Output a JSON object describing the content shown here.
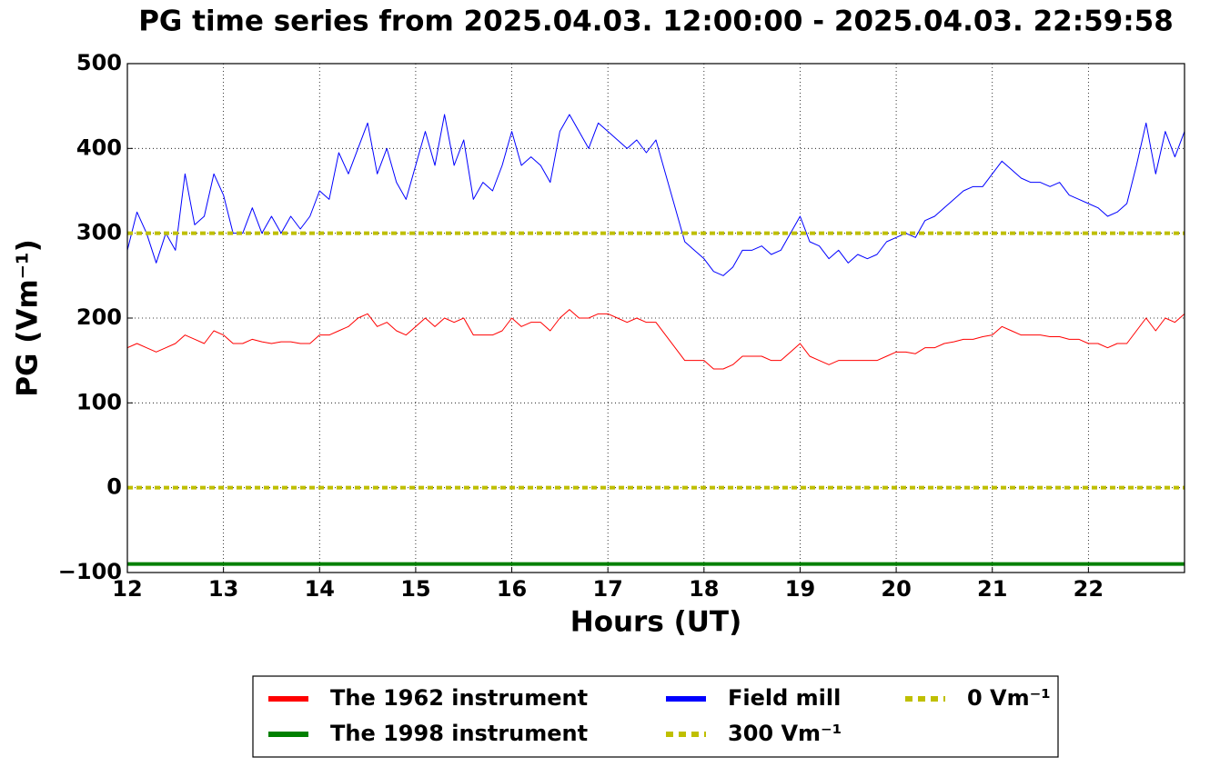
{
  "chart_data": {
    "type": "line",
    "title": "PG time series from 2025.04.03. 12:00:00 - 2025.04.03. 22:59:58",
    "xlabel": "Hours (UT)",
    "ylabel": "PG (Vm⁻¹)",
    "x": [
      12,
      12.1,
      12.2,
      12.3,
      12.4,
      12.5,
      12.6,
      12.7,
      12.8,
      12.9,
      13,
      13.1,
      13.2,
      13.3,
      13.4,
      13.5,
      13.6,
      13.7,
      13.8,
      13.9,
      14,
      14.1,
      14.2,
      14.3,
      14.4,
      14.5,
      14.6,
      14.7,
      14.8,
      14.9,
      15,
      15.1,
      15.2,
      15.3,
      15.4,
      15.5,
      15.6,
      15.7,
      15.8,
      15.9,
      16,
      16.1,
      16.2,
      16.3,
      16.4,
      16.5,
      16.6,
      16.7,
      16.8,
      16.9,
      17,
      17.1,
      17.2,
      17.3,
      17.4,
      17.5,
      17.6,
      17.7,
      17.8,
      17.9,
      18,
      18.1,
      18.2,
      18.3,
      18.4,
      18.5,
      18.6,
      18.7,
      18.8,
      18.9,
      19,
      19.1,
      19.2,
      19.3,
      19.4,
      19.5,
      19.6,
      19.7,
      19.8,
      19.9,
      20,
      20.1,
      20.2,
      20.3,
      20.4,
      20.5,
      20.6,
      20.7,
      20.8,
      20.9,
      21,
      21.1,
      21.2,
      21.3,
      21.4,
      21.5,
      21.6,
      21.7,
      21.8,
      21.9,
      22,
      22.1,
      22.2,
      22.3,
      22.4,
      22.5,
      22.6,
      22.7,
      22.8,
      22.9,
      23
    ],
    "series": [
      {
        "name": "The 1962 instrument",
        "color": "#ff0000",
        "width": 1,
        "values": [
          165,
          170,
          165,
          160,
          165,
          170,
          180,
          175,
          170,
          185,
          180,
          170,
          170,
          175,
          172,
          170,
          172,
          172,
          170,
          170,
          180,
          180,
          185,
          190,
          200,
          205,
          190,
          195,
          185,
          180,
          190,
          200,
          190,
          200,
          195,
          200,
          180,
          180,
          180,
          185,
          200,
          190,
          195,
          195,
          185,
          200,
          210,
          200,
          200,
          205,
          205,
          200,
          195,
          200,
          195,
          195,
          180,
          165,
          150,
          150,
          150,
          140,
          140,
          145,
          155,
          155,
          155,
          150,
          150,
          160,
          170,
          155,
          150,
          145,
          150,
          150,
          150,
          150,
          150,
          155,
          160,
          160,
          158,
          165,
          165,
          170,
          172,
          175,
          175,
          178,
          180,
          190,
          185,
          180,
          180,
          180,
          178,
          178,
          175,
          175,
          170,
          170,
          165,
          170,
          170,
          185,
          200,
          185,
          200,
          195,
          205
        ]
      },
      {
        "name": "The 1998 instrument",
        "color": "#008000",
        "width": 4,
        "x": [
          12,
          23
        ],
        "values": [
          -90,
          -90
        ]
      },
      {
        "name": "Field mill",
        "color": "#0000ff",
        "width": 1,
        "values": [
          280,
          325,
          300,
          265,
          300,
          280,
          370,
          310,
          320,
          370,
          345,
          300,
          300,
          330,
          300,
          320,
          300,
          320,
          305,
          320,
          350,
          340,
          395,
          370,
          400,
          430,
          370,
          400,
          360,
          340,
          380,
          420,
          380,
          440,
          380,
          410,
          340,
          360,
          350,
          380,
          420,
          380,
          390,
          380,
          360,
          420,
          440,
          420,
          400,
          430,
          420,
          410,
          400,
          410,
          395,
          410,
          370,
          330,
          290,
          280,
          270,
          255,
          250,
          260,
          280,
          280,
          285,
          275,
          280,
          300,
          320,
          290,
          285,
          270,
          280,
          265,
          275,
          270,
          275,
          290,
          295,
          300,
          295,
          315,
          320,
          330,
          340,
          350,
          355,
          355,
          370,
          385,
          375,
          365,
          360,
          360,
          355,
          360,
          345,
          340,
          335,
          330,
          320,
          325,
          335,
          380,
          430,
          370,
          420,
          390,
          420
        ]
      }
    ],
    "hlines": [
      {
        "name": "300 Vm⁻¹",
        "value": 300,
        "color": "#bfbf00"
      },
      {
        "name": "0 Vm⁻¹",
        "value": 0,
        "color": "#bfbf00"
      }
    ],
    "xlim": [
      12,
      23
    ],
    "xticks": [
      12,
      13,
      14,
      15,
      16,
      17,
      18,
      19,
      20,
      21,
      22
    ],
    "ylim": [
      -100,
      500
    ],
    "yticks": [
      {
        "value": -100,
        "label": "−100"
      },
      0,
      100,
      200,
      300,
      400,
      500
    ],
    "grid": true,
    "legend": "lower center"
  }
}
